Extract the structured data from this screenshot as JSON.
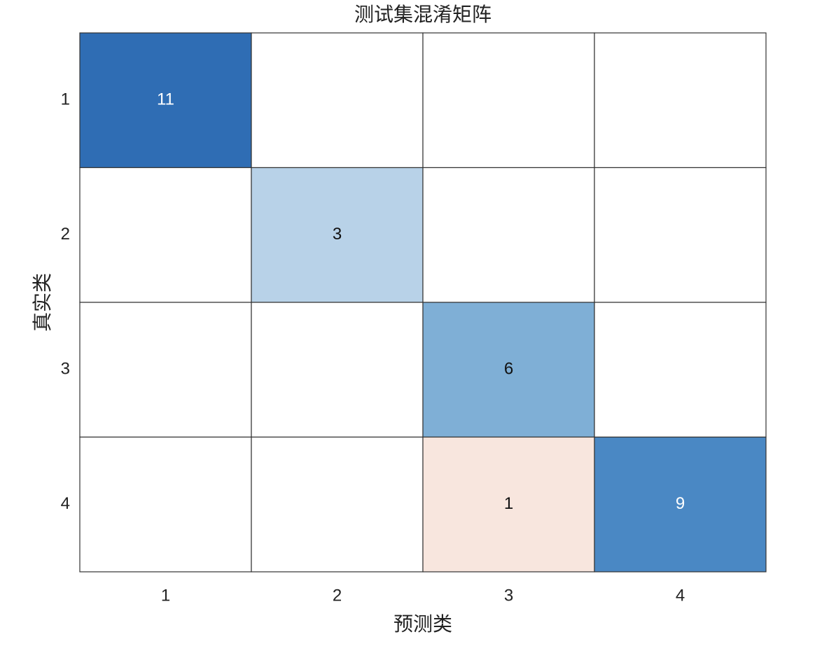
{
  "chart_data": {
    "type": "heatmap",
    "title": "测试集混淆矩阵",
    "x_label": "预测类",
    "y_label": "真实类",
    "x_categories": [
      1,
      2,
      3,
      4
    ],
    "y_categories": [
      1,
      2,
      3,
      4
    ],
    "values": [
      [
        11,
        null,
        null,
        null
      ],
      [
        null,
        3,
        null,
        null
      ],
      [
        null,
        null,
        6,
        null
      ],
      [
        null,
        null,
        1,
        9
      ]
    ],
    "colors": [
      [
        "#2f6db4",
        null,
        null,
        null
      ],
      [
        null,
        "#b8d2e8",
        null,
        null
      ],
      [
        null,
        null,
        "#7fafd6",
        null
      ],
      [
        null,
        null,
        "#f8e6de",
        "#4a88c4"
      ]
    ]
  }
}
